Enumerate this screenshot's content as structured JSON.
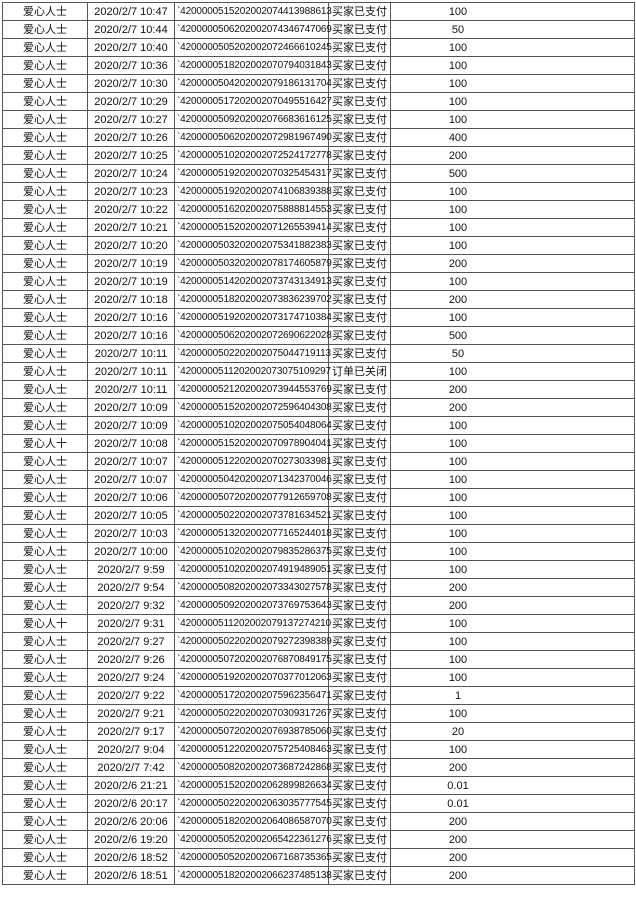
{
  "table": {
    "rows": [
      [
        "爱心人士",
        "2020/2/7 10:47",
        "`4200000515202002074413988613",
        "买家已支付",
        "100"
      ],
      [
        "爱心人士",
        "2020/2/7 10:44",
        "`4200000506202002074346747069",
        "买家已支付",
        "50"
      ],
      [
        "爱心人士",
        "2020/2/7 10:40",
        "`4200000505202002072466610245",
        "买家已支付",
        "100"
      ],
      [
        "爱心人士",
        "2020/2/7 10:36",
        "`4200000518202002070794031843",
        "买家已支付",
        "100"
      ],
      [
        "爱心人士",
        "2020/2/7 10:30",
        "`4200000504202002079186131704",
        "买家已支付",
        "100"
      ],
      [
        "爱心人士",
        "2020/2/7 10:29",
        "`4200000517202002070495516427",
        "买家已支付",
        "100"
      ],
      [
        "爱心人士",
        "2020/2/7 10:27",
        "`4200000509202002076683616125",
        "买家已支付",
        "100"
      ],
      [
        "爱心人士",
        "2020/2/7 10:26",
        "`4200000506202002072981967490",
        "买家已支付",
        "400"
      ],
      [
        "爱心人士",
        "2020/2/7 10:25",
        "`4200000510202002072524172778",
        "买家已支付",
        "200"
      ],
      [
        "爱心人士",
        "2020/2/7 10:24",
        "`4200000519202002070325454317",
        "买家已支付",
        "500"
      ],
      [
        "爱心人士",
        "2020/2/7 10:23",
        "`4200000519202002074106839388",
        "买家已支付",
        "100"
      ],
      [
        "爱心人士",
        "2020/2/7 10:22",
        "`4200000516202002075888814553",
        "买家已支付",
        "100"
      ],
      [
        "爱心人士",
        "2020/2/7 10:21",
        "`4200000515202002071265539414",
        "买家已支付",
        "100"
      ],
      [
        "爱心人士",
        "2020/2/7 10:20",
        "`4200000503202002075341882383",
        "买家已支付",
        "100"
      ],
      [
        "爱心人士",
        "2020/2/7 10:19",
        "`4200000503202002078174605879",
        "买家已支付",
        "200"
      ],
      [
        "爱心人士",
        "2020/2/7 10:19",
        "`4200000514202002073743134913",
        "买家已支付",
        "100"
      ],
      [
        "爱心人士",
        "2020/2/7 10:18",
        "`4200000518202002073836239702",
        "买家已支付",
        "200"
      ],
      [
        "爱心人士",
        "2020/2/7 10:16",
        "`4200000519202002073174710384",
        "买家已支付",
        "100"
      ],
      [
        "爱心人士",
        "2020/2/7 10:16",
        "`4200000506202002072690622028",
        "买家已支付",
        "500"
      ],
      [
        "爱心人士",
        "2020/2/7 10:11",
        "`4200000502202002075044719113",
        "买家已支付",
        "50"
      ],
      [
        "爱心人士",
        "2020/2/7 10:11",
        "`4200000511202002073075109297",
        "订单已关闭",
        "100"
      ],
      [
        "爱心人士",
        "2020/2/7 10:11",
        "`4200000521202002073944553769",
        "买家已支付",
        "200"
      ],
      [
        "爱心人士",
        "2020/2/7 10:09",
        "`4200000515202002072596404308",
        "买家已支付",
        "200"
      ],
      [
        "爱心人士",
        "2020/2/7 10:09",
        "`4200000510202002075054048064",
        "买家已支付",
        "100"
      ],
      [
        "爱心人十",
        "2020/2/7 10:08",
        "`4200000515202002070978904041",
        "买家已支付",
        "100"
      ],
      [
        "爱心人士",
        "2020/2/7 10:07",
        "`4200000512202002070273033981",
        "买家已支付",
        "100"
      ],
      [
        "爱心人士",
        "2020/2/7 10:07",
        "`4200000504202002071342370046",
        "买家已支付",
        "100"
      ],
      [
        "爱心人士",
        "2020/2/7 10:06",
        "`4200000507202002077912659708",
        "买家已支付",
        "100"
      ],
      [
        "爱心人士",
        "2020/2/7 10:05",
        "`4200000502202002073781634521",
        "买家已支付",
        "100"
      ],
      [
        "爱心人士",
        "2020/2/7 10:03",
        "`4200000513202002077165244018",
        "买家已支付",
        "100"
      ],
      [
        "爱心人士",
        "2020/2/7 10:00",
        "`4200000510202002079835286375",
        "买家已支付",
        "100"
      ],
      [
        "爱心人士",
        "2020/2/7 9:59",
        "`4200000510202002074919489051",
        "买家已支付",
        "100"
      ],
      [
        "爱心人士",
        "2020/2/7 9:54",
        "`4200000508202002073343027578",
        "买家已支付",
        "200"
      ],
      [
        "爱心人士",
        "2020/2/7 9:32",
        "`4200000509202002073769753643",
        "买家已支付",
        "200"
      ],
      [
        "爱心人十",
        "2020/2/7 9:31",
        "`4200000511202002079137274210",
        "买家已支付",
        "100"
      ],
      [
        "爱心人士",
        "2020/2/7 9:27",
        "`4200000502202002079272398389",
        "买家已支付",
        "100"
      ],
      [
        "爱心人士",
        "2020/2/7 9:26",
        "`4200000507202002076870849175",
        "买家已支付",
        "100"
      ],
      [
        "爱心人士",
        "2020/2/7 9:24",
        "`4200000519202002070377012063",
        "买家已支付",
        "100"
      ],
      [
        "爱心人士",
        "2020/2/7 9:22",
        "`4200000517202002075962356471",
        "买家已支付",
        "1"
      ],
      [
        "爱心人士",
        "2020/2/7 9:21",
        "`4200000502202002070309317267",
        "买家已支付",
        "100"
      ],
      [
        "爱心人士",
        "2020/2/7 9:17",
        "`4200000507202002076938785060",
        "买家已支付",
        "20"
      ],
      [
        "爱心人士",
        "2020/2/7 9:04",
        "`4200000512202002075725408463",
        "买家已支付",
        "100"
      ],
      [
        "爱心人士",
        "2020/2/7 7:42",
        "`4200000508202002073687242868",
        "买家已支付",
        "200"
      ],
      [
        "爱心人士",
        "2020/2/6 21:21",
        "`4200000515202002062899826634",
        "买家已支付",
        "0.01"
      ],
      [
        "爱心人士",
        "2020/2/6 20:17",
        "`4200000502202002063035777545",
        "买家已支付",
        "0.01"
      ],
      [
        "爱心人士",
        "2020/2/6 20:06",
        "`4200000518202002064086587070",
        "买家已支付",
        "200"
      ],
      [
        "爱心人士",
        "2020/2/6 19:20",
        "`4200000505202002065422361276",
        "买家已支付",
        "200"
      ],
      [
        "爱心人士",
        "2020/2/6 18:52",
        "`4200000505202002067168735365",
        "买家已支付",
        "200"
      ],
      [
        "爱心人士",
        "2020/2/6 18:51",
        "`4200000518202002066237485138",
        "买家已支付",
        "200"
      ]
    ]
  }
}
